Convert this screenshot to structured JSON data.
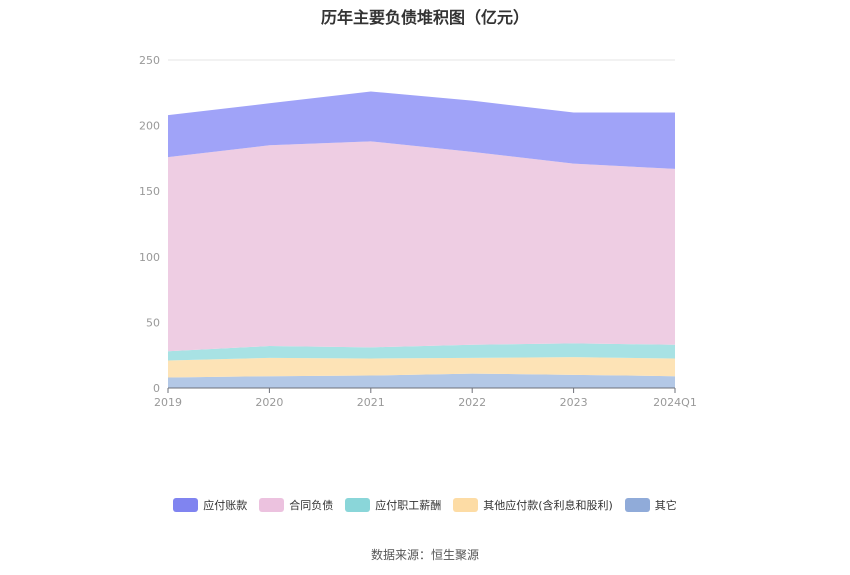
{
  "chart_data": {
    "type": "area",
    "stacked": true,
    "title": "历年主要负债堆积图（亿元）",
    "categories": [
      "2019",
      "2020",
      "2021",
      "2022",
      "2023",
      "2024Q1"
    ],
    "ylim": [
      0,
      250
    ],
    "yticks": [
      0,
      50,
      100,
      150,
      200,
      250
    ],
    "grid": true,
    "legend_position": "bottom",
    "series": [
      {
        "name": "其它",
        "color": "#b3c8e6",
        "legend_color": "#90abd9",
        "values": [
          8,
          9,
          9.5,
          11,
          10,
          9
        ]
      },
      {
        "name": "其他应付款(含利息和股利)",
        "color": "#fde3b6",
        "legend_color": "#fddca5",
        "values": [
          13,
          14,
          13,
          12,
          13.5,
          13.5
        ]
      },
      {
        "name": "应付职工薪酬",
        "color": "#a8e2e4",
        "legend_color": "#8ad6d9",
        "values": [
          7,
          9,
          8.5,
          10,
          10.5,
          10.5
        ]
      },
      {
        "name": "合同负债",
        "color": "#eecde3",
        "legend_color": "#ecc2df",
        "values": [
          148,
          153,
          157,
          147,
          137,
          134
        ]
      },
      {
        "name": "应付账款",
        "color": "#a0a3f8",
        "legend_color": "#8084f0",
        "values": [
          32,
          32,
          38,
          39,
          39,
          43
        ]
      }
    ]
  },
  "source": "数据来源：恒生聚源"
}
